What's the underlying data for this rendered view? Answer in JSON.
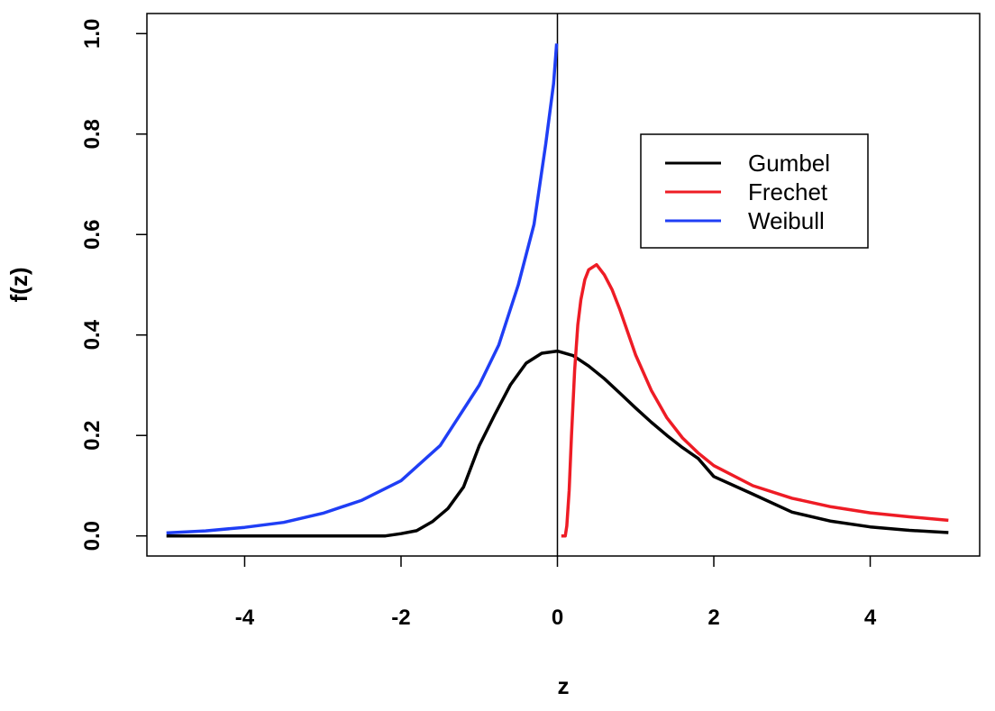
{
  "chart_data": {
    "type": "line",
    "title": "",
    "xlabel": "z",
    "ylabel": "f(z)",
    "xlim": [
      -5.25,
      5.4
    ],
    "ylim": [
      -0.04,
      1.04
    ],
    "xticks": [
      "-4",
      "-2",
      "0",
      "2",
      "4"
    ],
    "yticks": [
      "0.0",
      "0.2",
      "0.4",
      "0.6",
      "0.8",
      "1.0"
    ],
    "vertical_reference_line_x": 0,
    "legend": {
      "position": "top-right"
    },
    "series": [
      {
        "name": "Gumbel",
        "color": "#000000",
        "points": [
          [
            -5,
            0.0
          ],
          [
            -4,
            0.0
          ],
          [
            -3,
            0.0
          ],
          [
            -2.5,
            0.0
          ],
          [
            -2.2,
            0.0
          ],
          [
            -2,
            0.0045
          ],
          [
            -1.8,
            0.0105
          ],
          [
            -1.6,
            0.0283
          ],
          [
            -1.4,
            0.0545
          ],
          [
            -1.2,
            0.0976
          ],
          [
            -1,
            0.1794
          ],
          [
            -0.8,
            0.2419
          ],
          [
            -0.6,
            0.3008
          ],
          [
            -0.4,
            0.344
          ],
          [
            -0.2,
            0.3637
          ],
          [
            0,
            0.3679
          ],
          [
            0.2,
            0.359
          ],
          [
            0.4,
            0.3382
          ],
          [
            0.6,
            0.313
          ],
          [
            0.8,
            0.284
          ],
          [
            1,
            0.2546
          ],
          [
            1.2,
            0.2264
          ],
          [
            1.4,
            0.2
          ],
          [
            1.6,
            0.1759
          ],
          [
            1.8,
            0.1541
          ],
          [
            2,
            0.1182
          ],
          [
            2.5,
            0.083
          ],
          [
            3,
            0.0473
          ],
          [
            3.5,
            0.0293
          ],
          [
            4,
            0.018
          ],
          [
            4.5,
            0.0111
          ],
          [
            5,
            0.0067
          ]
        ]
      },
      {
        "name": "Frechet",
        "color": "#ee1c25",
        "points": [
          [
            0.05,
            0.0
          ],
          [
            0.1,
            0.0
          ],
          [
            0.12,
            0.02
          ],
          [
            0.15,
            0.09
          ],
          [
            0.18,
            0.2
          ],
          [
            0.22,
            0.33
          ],
          [
            0.26,
            0.42
          ],
          [
            0.3,
            0.47
          ],
          [
            0.35,
            0.51
          ],
          [
            0.4,
            0.53
          ],
          [
            0.5,
            0.54
          ],
          [
            0.6,
            0.52
          ],
          [
            0.7,
            0.49
          ],
          [
            0.8,
            0.45
          ],
          [
            1.0,
            0.36
          ],
          [
            1.2,
            0.29
          ],
          [
            1.4,
            0.235
          ],
          [
            1.6,
            0.195
          ],
          [
            1.8,
            0.165
          ],
          [
            2.0,
            0.14
          ],
          [
            2.5,
            0.1
          ],
          [
            3.0,
            0.075
          ],
          [
            3.5,
            0.058
          ],
          [
            4.0,
            0.046
          ],
          [
            4.5,
            0.038
          ],
          [
            5.0,
            0.031
          ]
        ]
      },
      {
        "name": "Weibull",
        "color": "#1f3ef5",
        "points": [
          [
            -5,
            0.006
          ],
          [
            -4.5,
            0.01
          ],
          [
            -4,
            0.017
          ],
          [
            -3.5,
            0.027
          ],
          [
            -3,
            0.045
          ],
          [
            -2.5,
            0.071
          ],
          [
            -2,
            0.11
          ],
          [
            -1.5,
            0.18
          ],
          [
            -1,
            0.3
          ],
          [
            -0.75,
            0.38
          ],
          [
            -0.5,
            0.5
          ],
          [
            -0.3,
            0.62
          ],
          [
            -0.15,
            0.78
          ],
          [
            -0.05,
            0.9
          ],
          [
            -0.01,
            0.98
          ]
        ]
      }
    ]
  }
}
